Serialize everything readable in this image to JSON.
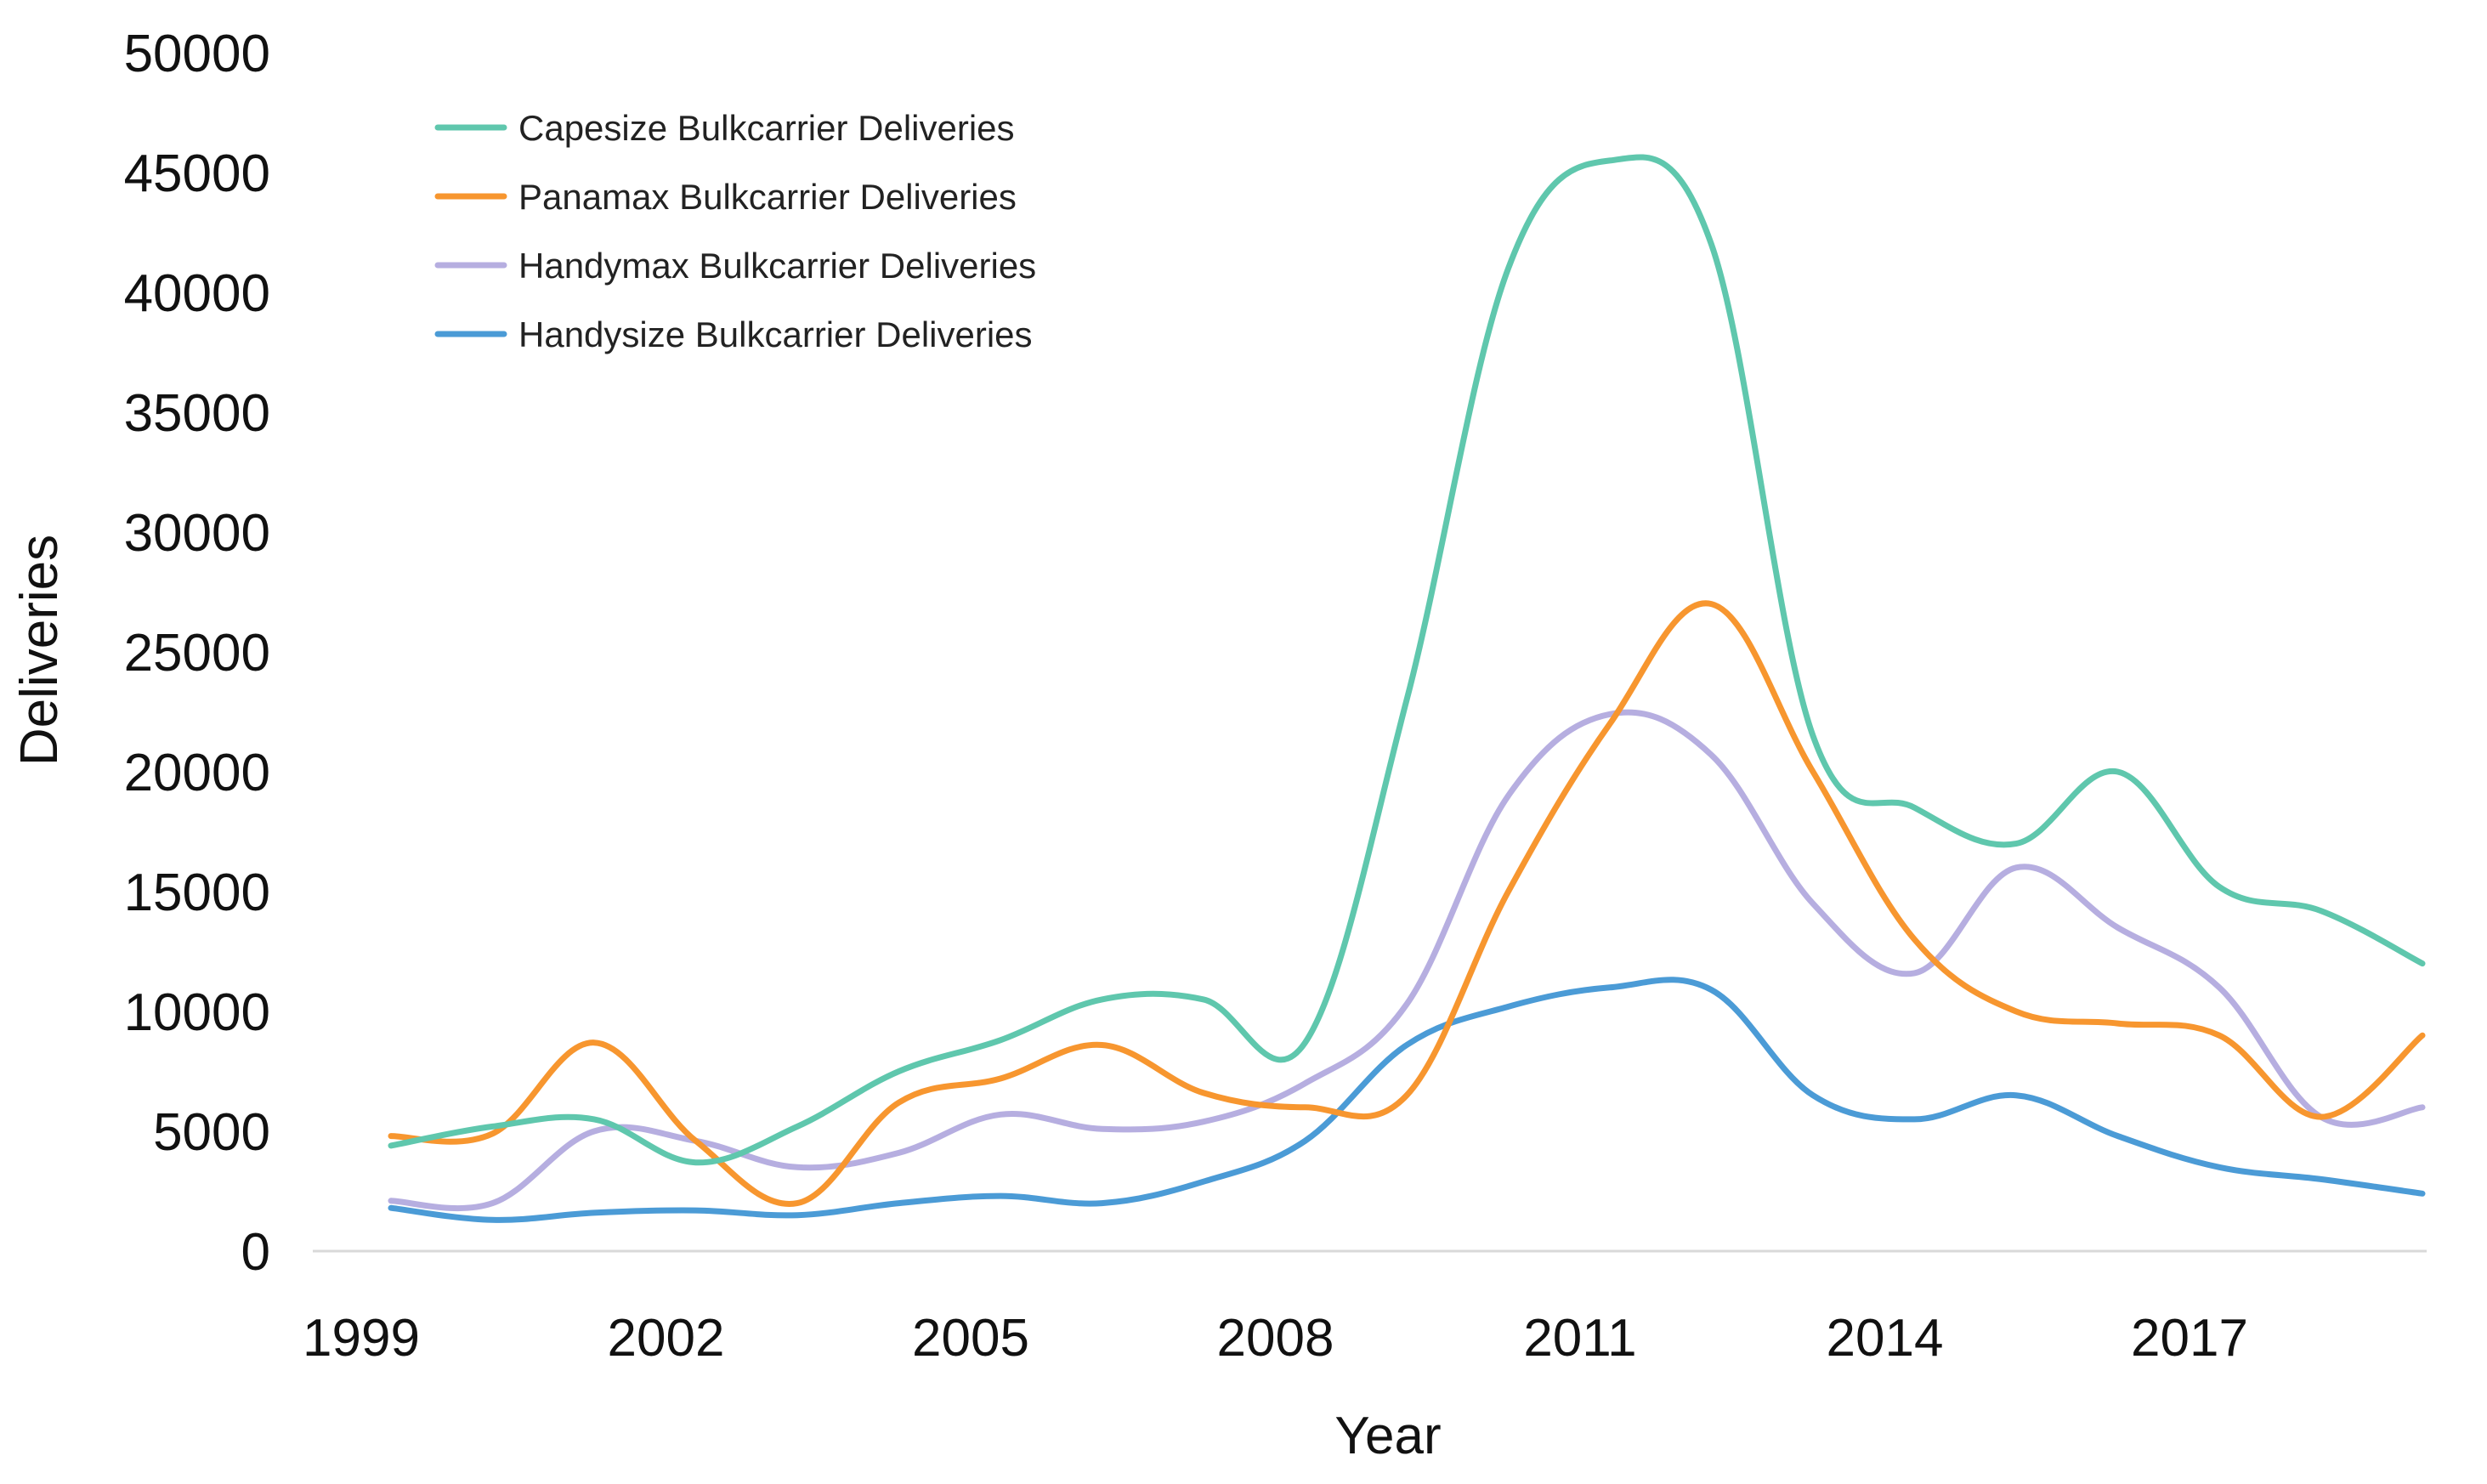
{
  "chart_data": {
    "type": "line",
    "title": "",
    "xlabel": "Year",
    "ylabel": "Deliveries",
    "x": [
      1999,
      2000,
      2001,
      2002,
      2003,
      2004,
      2005,
      2006,
      2007,
      2008,
      2009,
      2010,
      2011,
      2012,
      2013,
      2014,
      2015,
      2016,
      2017,
      2018,
      2019
    ],
    "x_ticks": [
      1999,
      2002,
      2005,
      2008,
      2011,
      2014,
      2017
    ],
    "x_tick_labels": [
      "1999",
      "2002",
      "2005",
      "2008",
      "2011",
      "2014",
      "2017"
    ],
    "xlim": [
      1999,
      2019
    ],
    "y_ticks": [
      0,
      5000,
      10000,
      15000,
      20000,
      25000,
      30000,
      35000,
      40000,
      45000,
      50000
    ],
    "y_tick_labels": [
      "0",
      "5000",
      "10000",
      "15000",
      "20000",
      "25000",
      "30000",
      "35000",
      "40000",
      "45000",
      "50000"
    ],
    "ylim": [
      0,
      50000
    ],
    "grid": false,
    "legend_position": "top-left",
    "series": [
      {
        "name": "Capesize Bulkcarrier Deliveries",
        "color": "#5fc7ad",
        "values": [
          4400,
          5200,
          5500,
          3700,
          5200,
          7500,
          8800,
          10500,
          10500,
          8700,
          23000,
          41000,
          45500,
          42000,
          21500,
          18500,
          17000,
          20000,
          15200,
          14200,
          12000
        ]
      },
      {
        "name": "Panamax Bulkcarrier Deliveries",
        "color": "#f7962f",
        "values": [
          4800,
          4900,
          8700,
          4600,
          2000,
          6200,
          7200,
          8600,
          6600,
          6000,
          6500,
          15000,
          22000,
          27000,
          20000,
          13000,
          10000,
          9500,
          9000,
          5600,
          9000
        ]
      },
      {
        "name": "Handymax Bulkcarrier Deliveries",
        "color": "#b6aee0",
        "values": [
          2100,
          2000,
          5000,
          4600,
          3500,
          4100,
          5700,
          5100,
          5400,
          7000,
          10300,
          19000,
          22400,
          20700,
          14500,
          11600,
          16000,
          13500,
          11000,
          5600,
          6000
        ]
      },
      {
        "name": "Handysize Bulkcarrier Deliveries",
        "color": "#4b9bd6",
        "values": [
          1800,
          1300,
          1600,
          1700,
          1500,
          2000,
          2300,
          2000,
          2900,
          4600,
          8600,
          10200,
          11000,
          10900,
          6500,
          5500,
          6500,
          4800,
          3500,
          3000,
          2400
        ]
      }
    ]
  }
}
